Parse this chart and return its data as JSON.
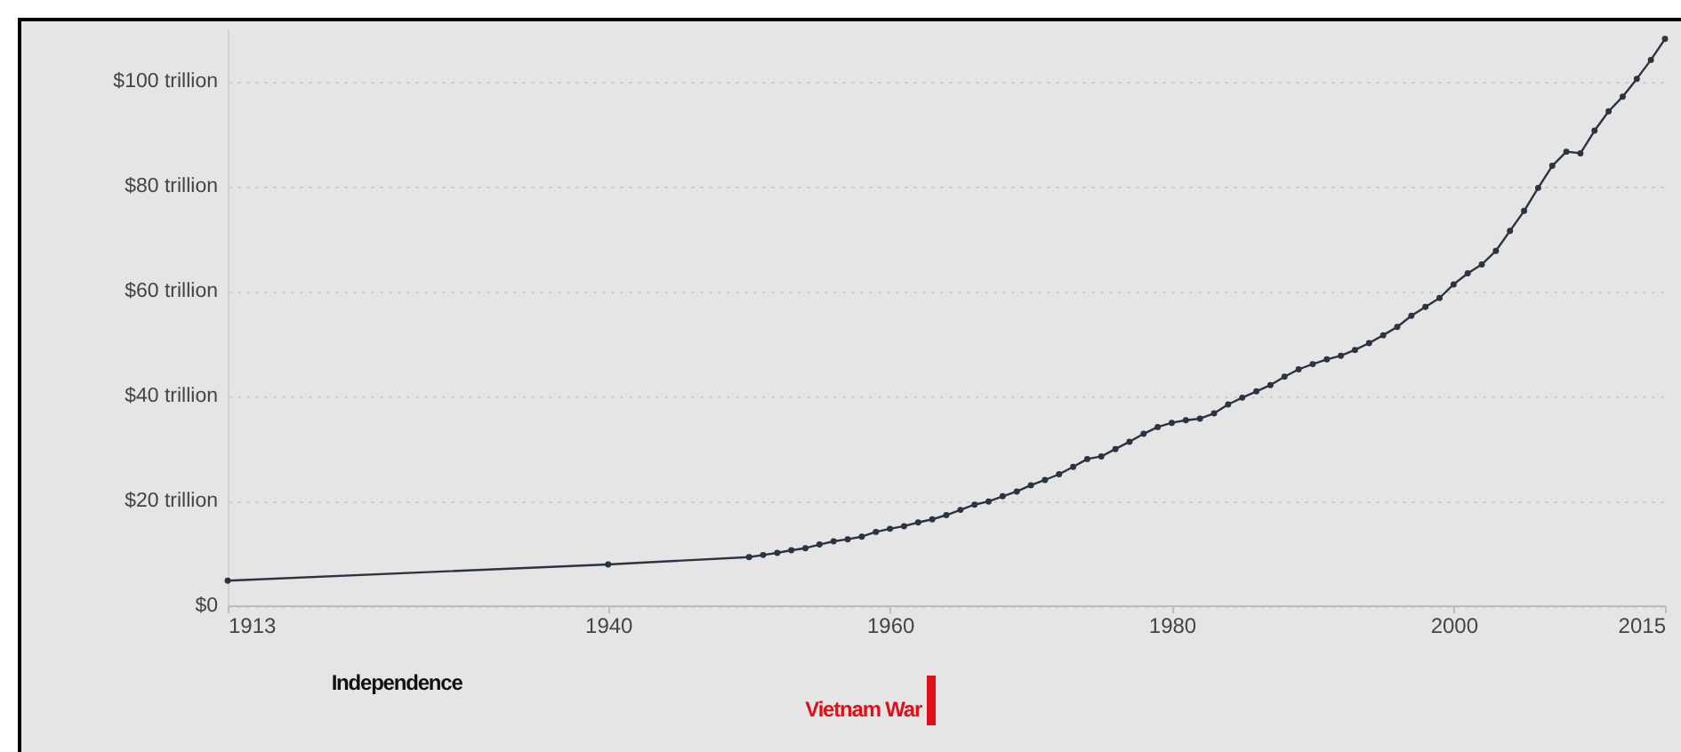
{
  "chart_data": {
    "type": "line",
    "x": [
      1913,
      1940,
      1950,
      1951,
      1952,
      1953,
      1954,
      1955,
      1956,
      1957,
      1958,
      1959,
      1960,
      1961,
      1962,
      1963,
      1964,
      1965,
      1966,
      1967,
      1968,
      1969,
      1970,
      1971,
      1972,
      1973,
      1974,
      1975,
      1976,
      1977,
      1978,
      1979,
      1980,
      1981,
      1982,
      1983,
      1984,
      1985,
      1986,
      1987,
      1988,
      1989,
      1990,
      1991,
      1992,
      1993,
      1994,
      1995,
      1996,
      1997,
      1998,
      1999,
      2000,
      2001,
      2002,
      2003,
      2004,
      2005,
      2006,
      2007,
      2008,
      2009,
      2010,
      2011,
      2012,
      2013,
      2014,
      2015
    ],
    "series": [
      {
        "color": "#2b3440",
        "values": [
          4.7,
          7.8,
          9.2,
          9.6,
          10.0,
          10.5,
          10.9,
          11.6,
          12.2,
          12.6,
          13.1,
          14.0,
          14.6,
          15.1,
          15.8,
          16.4,
          17.2,
          18.2,
          19.2,
          19.8,
          20.8,
          21.7,
          22.9,
          23.9,
          25.0,
          26.4,
          27.9,
          28.4,
          29.8,
          31.2,
          32.7,
          34.0,
          34.8,
          35.3,
          35.6,
          36.6,
          38.3,
          39.6,
          40.8,
          42.0,
          43.6,
          45.0,
          46.0,
          46.9,
          47.6,
          48.7,
          50.0,
          51.5,
          53.1,
          55.2,
          56.9,
          58.6,
          61.2,
          63.3,
          65.0,
          67.6,
          71.4,
          75.2,
          79.6,
          83.8,
          86.5,
          86.2,
          90.5,
          94.2,
          97.0,
          100.4,
          104.0,
          108.0
        ]
      }
    ],
    "xlim": [
      1913,
      2015
    ],
    "xticks": [
      1913,
      1940,
      1960,
      1980,
      2000,
      2015
    ],
    "ylim": [
      0,
      110
    ],
    "yticks": [
      {
        "value": 0,
        "label": "$0"
      },
      {
        "value": 20,
        "label": "$20 trillion"
      },
      {
        "value": 40,
        "label": "$40 trillion"
      },
      {
        "value": 60,
        "label": "$60 trillion"
      },
      {
        "value": 80,
        "label": "$80 trillion"
      },
      {
        "value": 100,
        "label": "$100 trillion"
      }
    ],
    "grid": "y",
    "marker": "circle",
    "line_style": "solid",
    "annotations": [
      "Independence",
      "Vietnam War"
    ]
  }
}
